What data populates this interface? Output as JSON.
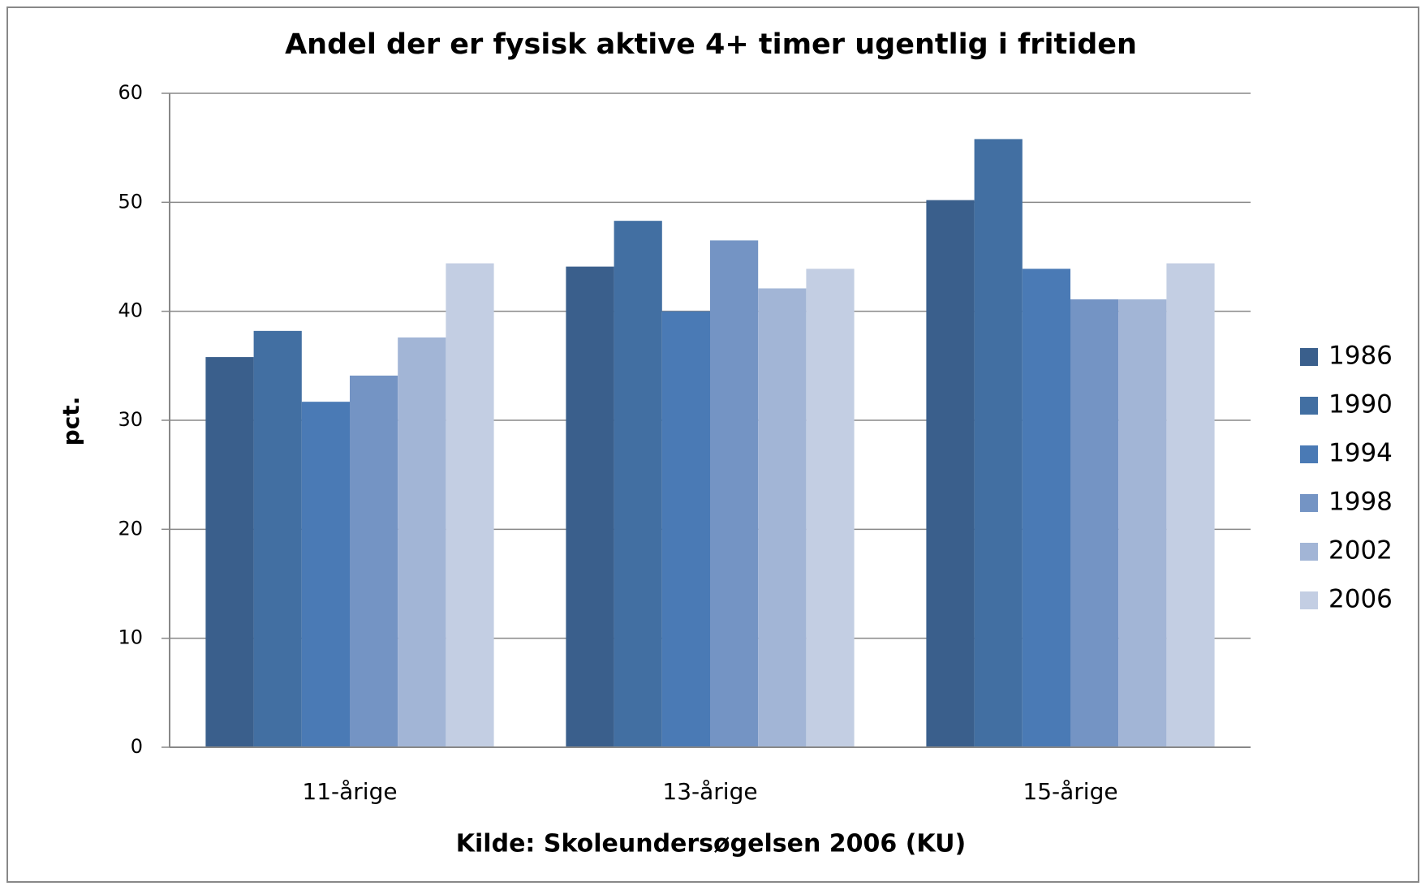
{
  "chart_data": {
    "type": "bar",
    "title": "Andel der er fysisk aktive 4+ timer ugentlig i fritiden",
    "y_label": "pct.",
    "x_label": "Kilde: Skoleundersøgelsen 2006 (KU)",
    "categories": [
      "11-årige",
      "13-årige",
      "15-årige"
    ],
    "series": [
      {
        "name": "1986",
        "color": "#3a5f8c",
        "values": [
          35.8,
          44.1,
          50.2
        ]
      },
      {
        "name": "1990",
        "color": "#426fa2",
        "values": [
          38.2,
          48.3,
          55.8
        ]
      },
      {
        "name": "1994",
        "color": "#4a7ab5",
        "values": [
          31.7,
          40.0,
          43.9
        ]
      },
      {
        "name": "1998",
        "color": "#7494c4",
        "values": [
          34.1,
          46.5,
          41.1
        ]
      },
      {
        "name": "2002",
        "color": "#a2b5d6",
        "values": [
          37.6,
          42.1,
          41.1
        ]
      },
      {
        "name": "2006",
        "color": "#c3cee3",
        "values": [
          44.4,
          43.9,
          44.4
        ]
      }
    ],
    "ylim": [
      0,
      60
    ],
    "yticks": [
      0,
      10,
      20,
      30,
      40,
      50,
      60
    ],
    "grid": true,
    "legend": "right"
  }
}
